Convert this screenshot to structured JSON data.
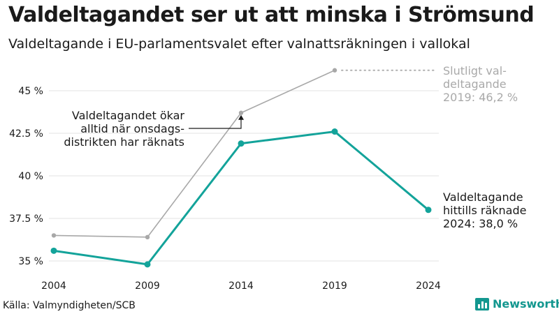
{
  "title": "Valdeltagandet ser ut att minska i Strömsund",
  "subtitle": "Valdeltagande i EU-parlamentsvalet efter valnattsräkningen i vallokal",
  "source": "Källa: Valmyndigheten/SCB",
  "brand": {
    "name": "Newsworthy",
    "icon": "chart-logo-icon",
    "color": "#13978f"
  },
  "chart_data": {
    "type": "line",
    "categories": [
      "2004",
      "2009",
      "2014",
      "2019",
      "2024"
    ],
    "ylim": [
      34.5,
      47
    ],
    "yticks": [
      35,
      37.5,
      40,
      42.5,
      45
    ],
    "ytick_labels": [
      "35 %",
      "37.5 %",
      "40 %",
      "42.5 %",
      "45 %"
    ],
    "grid": true,
    "series": [
      {
        "key": "final",
        "values": [
          36.5,
          36.4,
          43.7,
          46.2,
          null
        ],
        "color": "#a8a8a8"
      },
      {
        "key": "counted",
        "values": [
          35.6,
          34.8,
          41.9,
          42.6,
          38.0
        ],
        "color": "#13a39a"
      }
    ],
    "annotations": {
      "final_label": [
        "Slutligt val-",
        "deltagande",
        "2019: 46,2 %"
      ],
      "counted_label": [
        "Valdeltagande",
        "hittills räknade",
        "2024: 38,0 %"
      ],
      "note": [
        "Valdeltagandet ökar",
        "alltid när onsdags-",
        "distrikten har räknats"
      ]
    }
  }
}
